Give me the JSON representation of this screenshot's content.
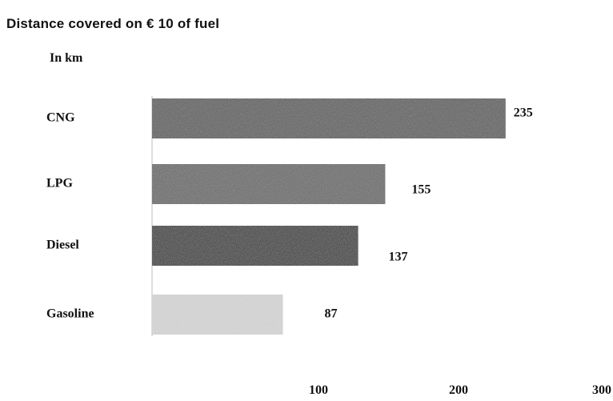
{
  "chart_data": {
    "type": "bar",
    "orientation": "horizontal",
    "title": "Distance covered on € 10 of fuel",
    "unit_label": "In km",
    "categories": [
      "CNG",
      "LPG",
      "Diesel",
      "Gasoline"
    ],
    "values": [
      235,
      155,
      137,
      87
    ],
    "value_labels": [
      "235",
      "155",
      "137",
      "87"
    ],
    "xlim": [
      0,
      300
    ],
    "xticks": [
      "100",
      "200",
      "300"
    ],
    "grid": false,
    "legend": "none",
    "bar_colors": [
      "#5e5e5e",
      "#6a6a6a",
      "#3a3a3a",
      "#d9d9d9"
    ]
  }
}
